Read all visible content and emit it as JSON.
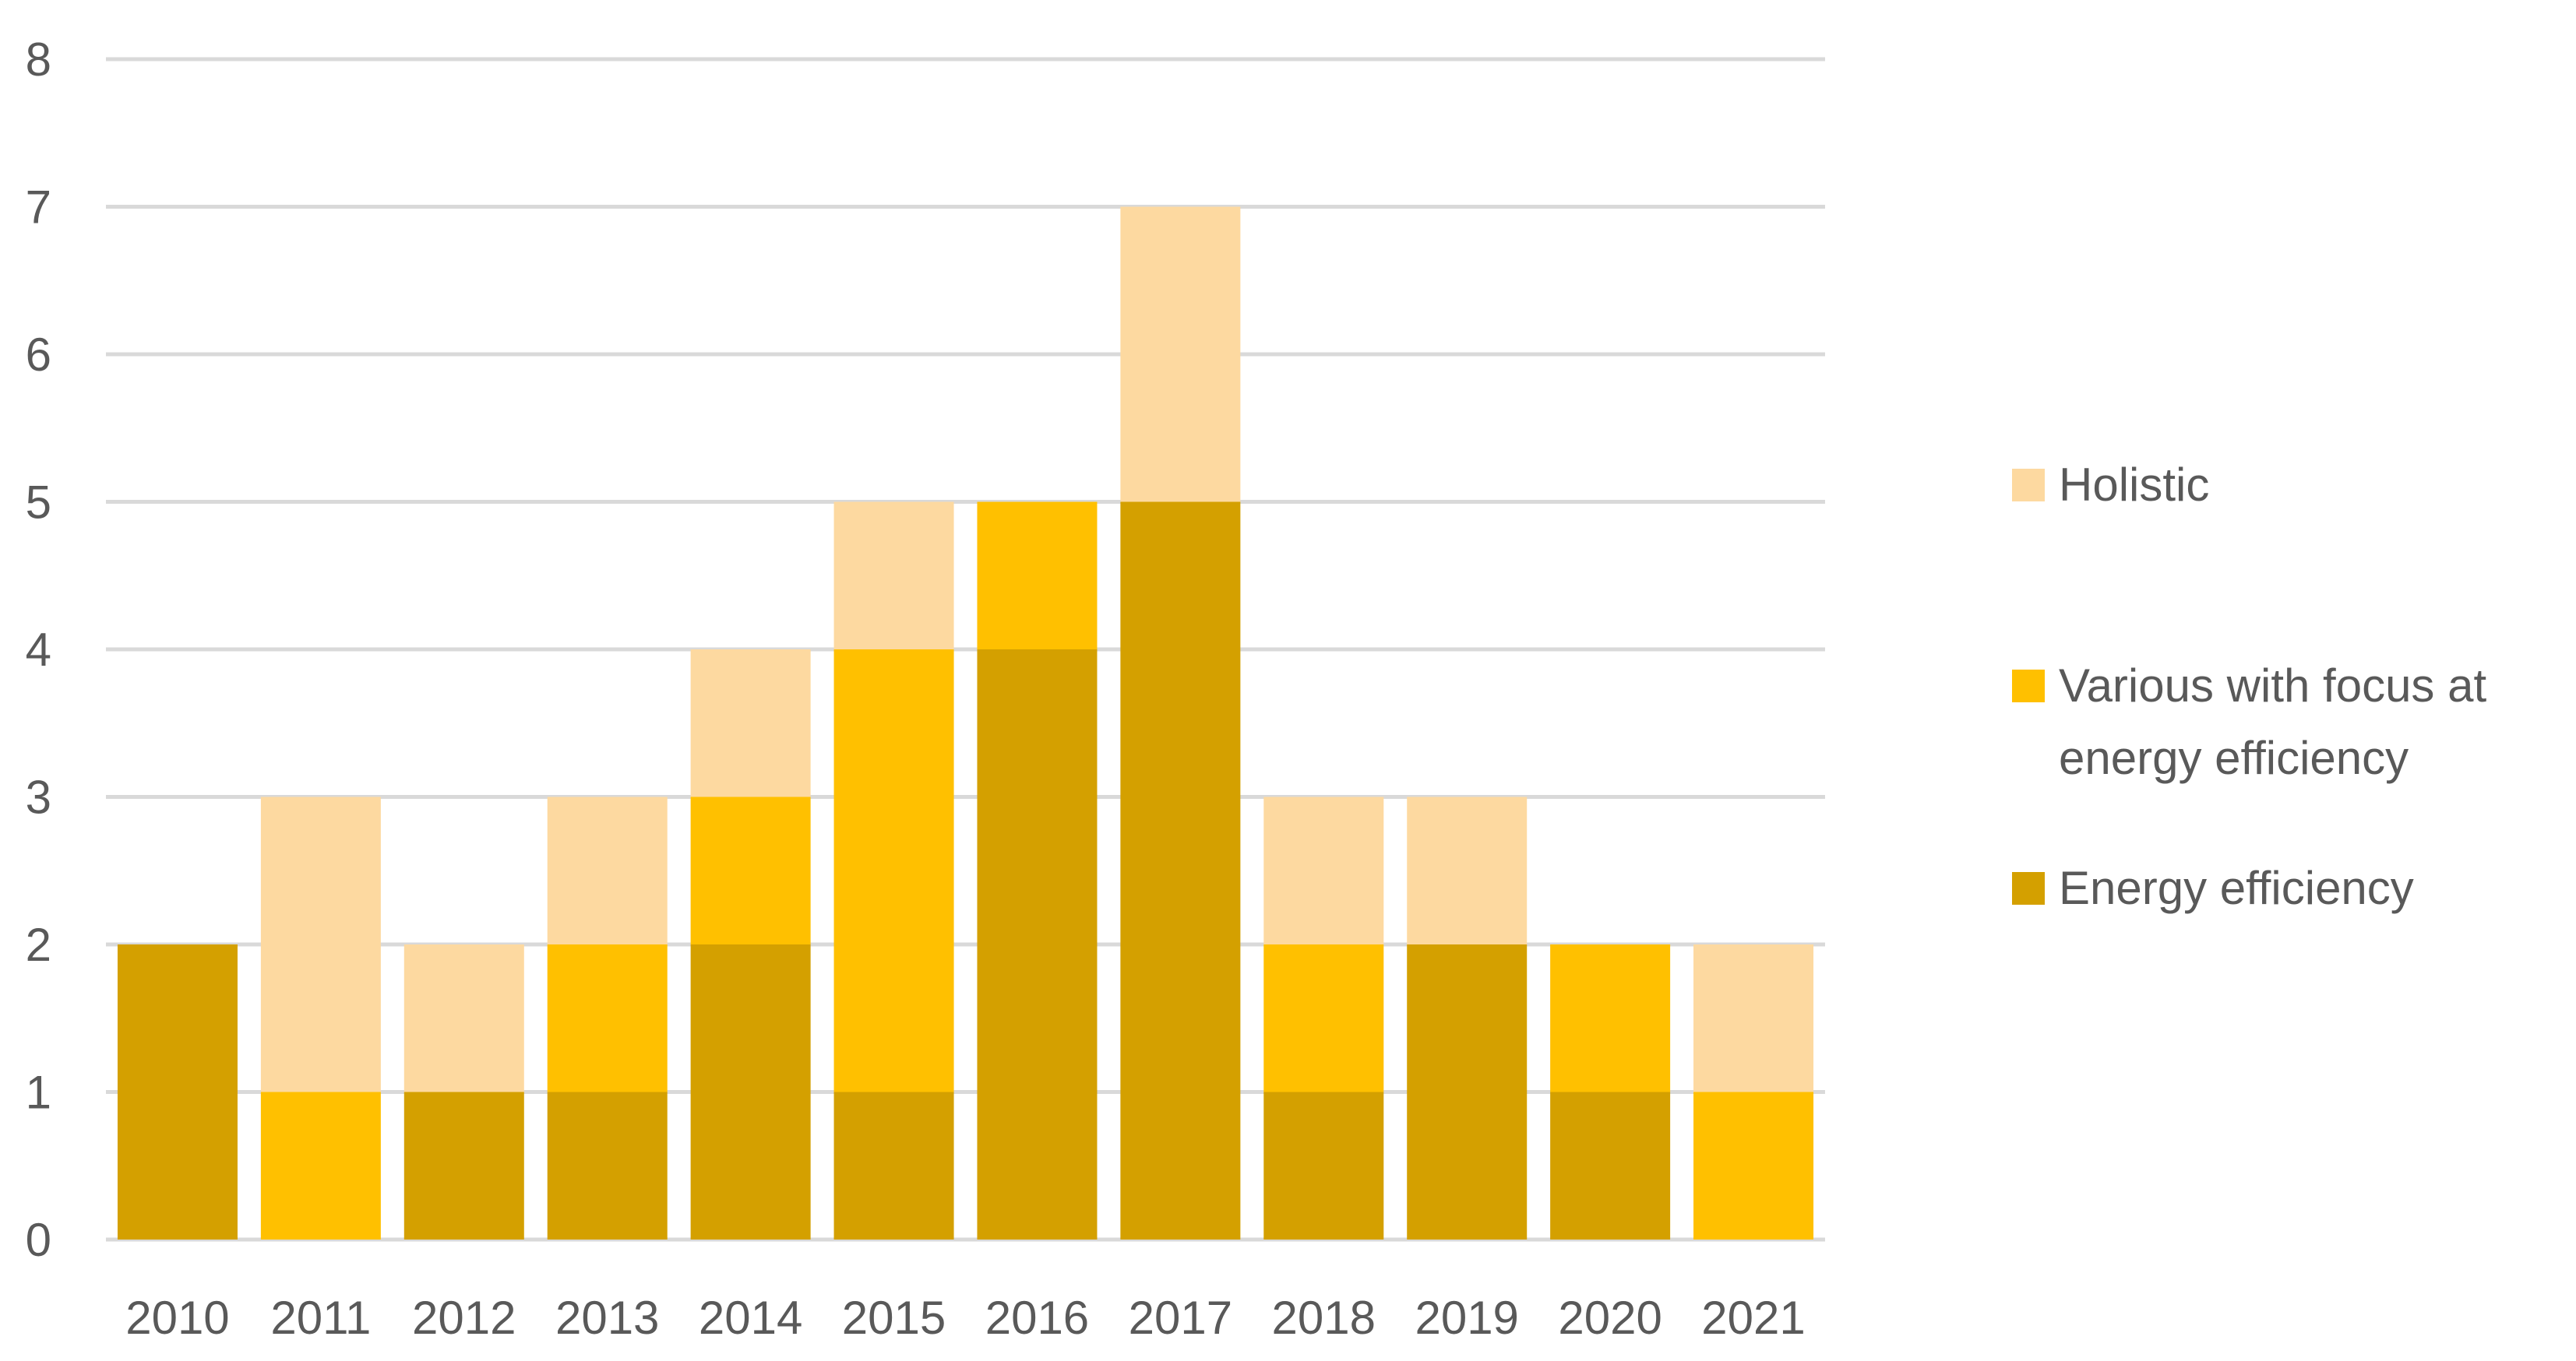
{
  "chart_data": {
    "type": "bar",
    "stacked": true,
    "title": "",
    "xlabel": "",
    "ylabel": "",
    "ylim": [
      0,
      8
    ],
    "yticks": [
      0,
      1,
      2,
      3,
      4,
      5,
      6,
      7,
      8
    ],
    "grid": true,
    "legend_position": "right",
    "categories": [
      "2010",
      "2011",
      "2012",
      "2013",
      "2014",
      "2015",
      "2016",
      "2017",
      "2018",
      "2019",
      "2020",
      "2021"
    ],
    "series": [
      {
        "name": "Energy efficiency",
        "color": "#D4A000",
        "values": [
          2,
          0,
          1,
          1,
          2,
          1,
          4,
          5,
          1,
          2,
          1,
          0
        ]
      },
      {
        "name": "Various with focus at energy efficiency",
        "color": "#FFC000",
        "values": [
          0,
          1,
          0,
          1,
          1,
          3,
          1,
          0,
          1,
          0,
          1,
          1
        ]
      },
      {
        "name": "Holistic",
        "color": "#FDD9A0",
        "values": [
          0,
          2,
          1,
          1,
          1,
          1,
          0,
          2,
          1,
          1,
          0,
          1
        ]
      }
    ],
    "legend": {
      "items": [
        {
          "series": "Holistic",
          "lines": [
            "Holistic"
          ]
        },
        {
          "series": "Various with focus at energy efficiency",
          "lines": [
            "Various with focus at",
            "energy efficiency"
          ]
        },
        {
          "series": "Energy efficiency",
          "lines": [
            "Energy efficiency"
          ]
        }
      ]
    }
  }
}
